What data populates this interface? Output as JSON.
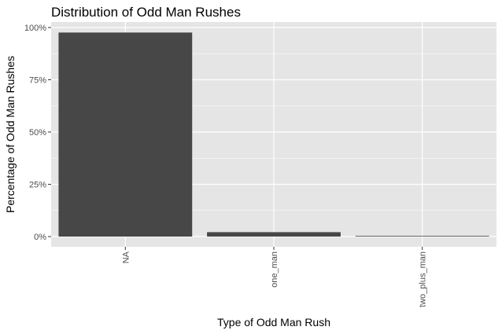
{
  "chart_data": {
    "type": "bar",
    "title": "Distribution of Odd Man Rushes",
    "xlabel": "Type of Odd Man Rush",
    "ylabel": "Percentage of Odd Man Rushes",
    "categories": [
      "NA",
      "one_man",
      "two_plus_man"
    ],
    "values": [
      97.6,
      2.1,
      0.3
    ],
    "ylim": [
      0,
      100
    ],
    "yticks": [
      0,
      25,
      50,
      75,
      100
    ],
    "ytick_labels": [
      "0%",
      "25%",
      "50%",
      "75%",
      "100%"
    ],
    "grid": true,
    "legend": "none",
    "colors": {
      "bar": "#474747",
      "panel": "#e5e5e5",
      "grid": "#ffffff"
    }
  }
}
